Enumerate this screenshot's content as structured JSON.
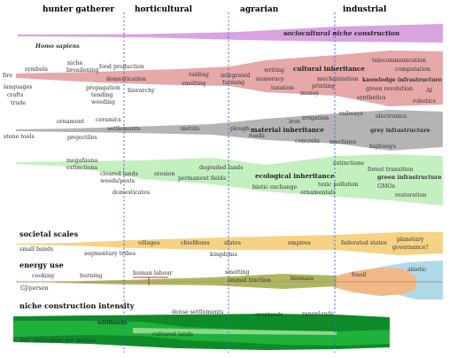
{
  "eras": [
    "hunter gatherer",
    "horticultural",
    "agrarian",
    "industrial"
  ],
  "sociocultural": {
    "title": "sociocultural niche construction"
  },
  "homo_sapiens": "Homo sapiens",
  "cultural": {
    "title": "cultural inheritance",
    "labels": {
      "fire": "fire",
      "symbols": "symbols",
      "languages": "languages",
      "crafts": "crafts",
      "trade": "trade",
      "niche": "niche",
      "broadening": "broadening",
      "food_production": "food production",
      "domestication": "domestication",
      "propagation": "propagation",
      "tending": "tending",
      "weeding": "weeding",
      "hierarchy": "hierarchy",
      "raiding": "raiding",
      "smelting": "smelting",
      "integrated": "integrated",
      "farming": "farming",
      "writing": "writing",
      "numeracy": "numeracy",
      "taxation": "taxation",
      "money": "money",
      "printing": "printing",
      "mechanization": "mechanization",
      "telecommunication": "telecommunication",
      "computation": "computation",
      "knowledge_infrastructure": "knowledge infrastructure",
      "green_revolution": "green revolution",
      "ai": "AI",
      "synthetics": "synthetics",
      "robotics": "robotics"
    }
  },
  "material": {
    "title": "material inheritance",
    "labels": {
      "stone_tools": "stone tools",
      "ornament": "ornament",
      "ceramics": "ceramics",
      "projectiles": "projectiles",
      "settlements": "settlements",
      "metals": "metals",
      "plough": "plough",
      "roads": "roads",
      "iron": "iron",
      "irrigation": "irrigation",
      "railways": "railways",
      "electronics": "electronics",
      "concrete": "concrete",
      "machines": "machines",
      "grey_infrastructure": "grey infrastructure",
      "highways": "highways"
    }
  },
  "ecological": {
    "title": "ecological inheritance",
    "labels": {
      "megafauna": "megafauna",
      "extinctions": "extinctions",
      "cleared_lands": "cleared lands",
      "weeds_pests": "weeds/pests",
      "domesticates": "domesticates",
      "erosion": "erosion",
      "permanent_fields": "permanent fields",
      "degraded_lands": "degraded lands",
      "biotic_exchange": "biotic exchange",
      "extinctions2": "extinctions",
      "forest_transition": "forest transition",
      "toxic_pollution": "toxic pollution",
      "green_infrastructure": "green infrastructure",
      "ornamentals": "ornamentals",
      "gmos": "GMOs",
      "restoration": "restoration"
    }
  },
  "societal": {
    "title": "societal scales",
    "labels": {
      "small_bands": "small bands",
      "segmentary_tribes": "segmentary tribes",
      "villages": "villages",
      "chiefdoms": "chiefdoms",
      "states": "states",
      "kingdoms": "kingdoms",
      "empires": "empires",
      "federated_states": "federated states",
      "planetary": "planetary",
      "governance": "governance?"
    }
  },
  "energy": {
    "title": "energy use",
    "labels": {
      "cooking": "cooking",
      "gj_person": "GJ/person",
      "burning": "burning",
      "human_labour": "human labour",
      "smelting": "smelting",
      "animal_traction": "animal traction",
      "biomass": "biomass",
      "fossil": "fossil",
      "abiotic": "abiotic"
    }
  },
  "intensity": {
    "title": "niche construction intensity",
    "labels": {
      "wildlands": "wildlands",
      "dense_settlements": "dense settlements",
      "croplands": "croplands",
      "rangelands": "rangelands",
      "cultured_lands": "cultured lands",
      "km2_person": "km² anthromes per person"
    }
  },
  "colors": {
    "purple": "#d9a3e0",
    "pink": "#e6a8a8",
    "grey": "#b4b4b4",
    "lightgreen": "#c4f0c0",
    "orange": "#f7d283",
    "olive": "#aab860",
    "peach": "#f3b887",
    "lightblue": "#aedae8",
    "green": "#1fb23a",
    "darkgreen": "#0f8a28",
    "era_line": "#3a6ac8"
  }
}
